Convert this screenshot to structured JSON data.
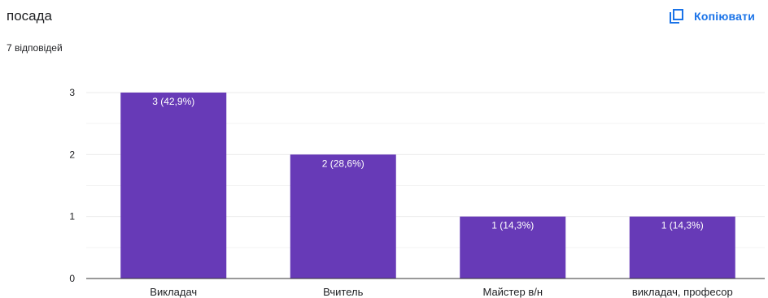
{
  "header": {
    "title": "посада",
    "response_count": "7 відповідей"
  },
  "toolbar": {
    "copy_label": "Копіювати",
    "copy_icon": "copy-icon"
  },
  "colors": {
    "bar": "#673ab7",
    "accent": "#1a73e8",
    "text": "#202124",
    "gridline": "#ebebeb",
    "axis": "#333333",
    "data_label": "#ffffff"
  },
  "chart_data": {
    "type": "bar",
    "title": "",
    "xlabel": "",
    "ylabel": "",
    "categories": [
      "Викладач",
      "Вчитель",
      "Майстер в/н",
      "викладач, професор"
    ],
    "values": [
      3,
      2,
      1,
      1
    ],
    "data_labels": [
      "3 (42,9%)",
      "2 (28,6%)",
      "1 (14,3%)",
      "1 (14,3%)"
    ],
    "ylim": [
      0,
      3
    ],
    "yticks": [
      "0",
      "1",
      "2",
      "3"
    ],
    "grid": true,
    "legend": "none"
  }
}
